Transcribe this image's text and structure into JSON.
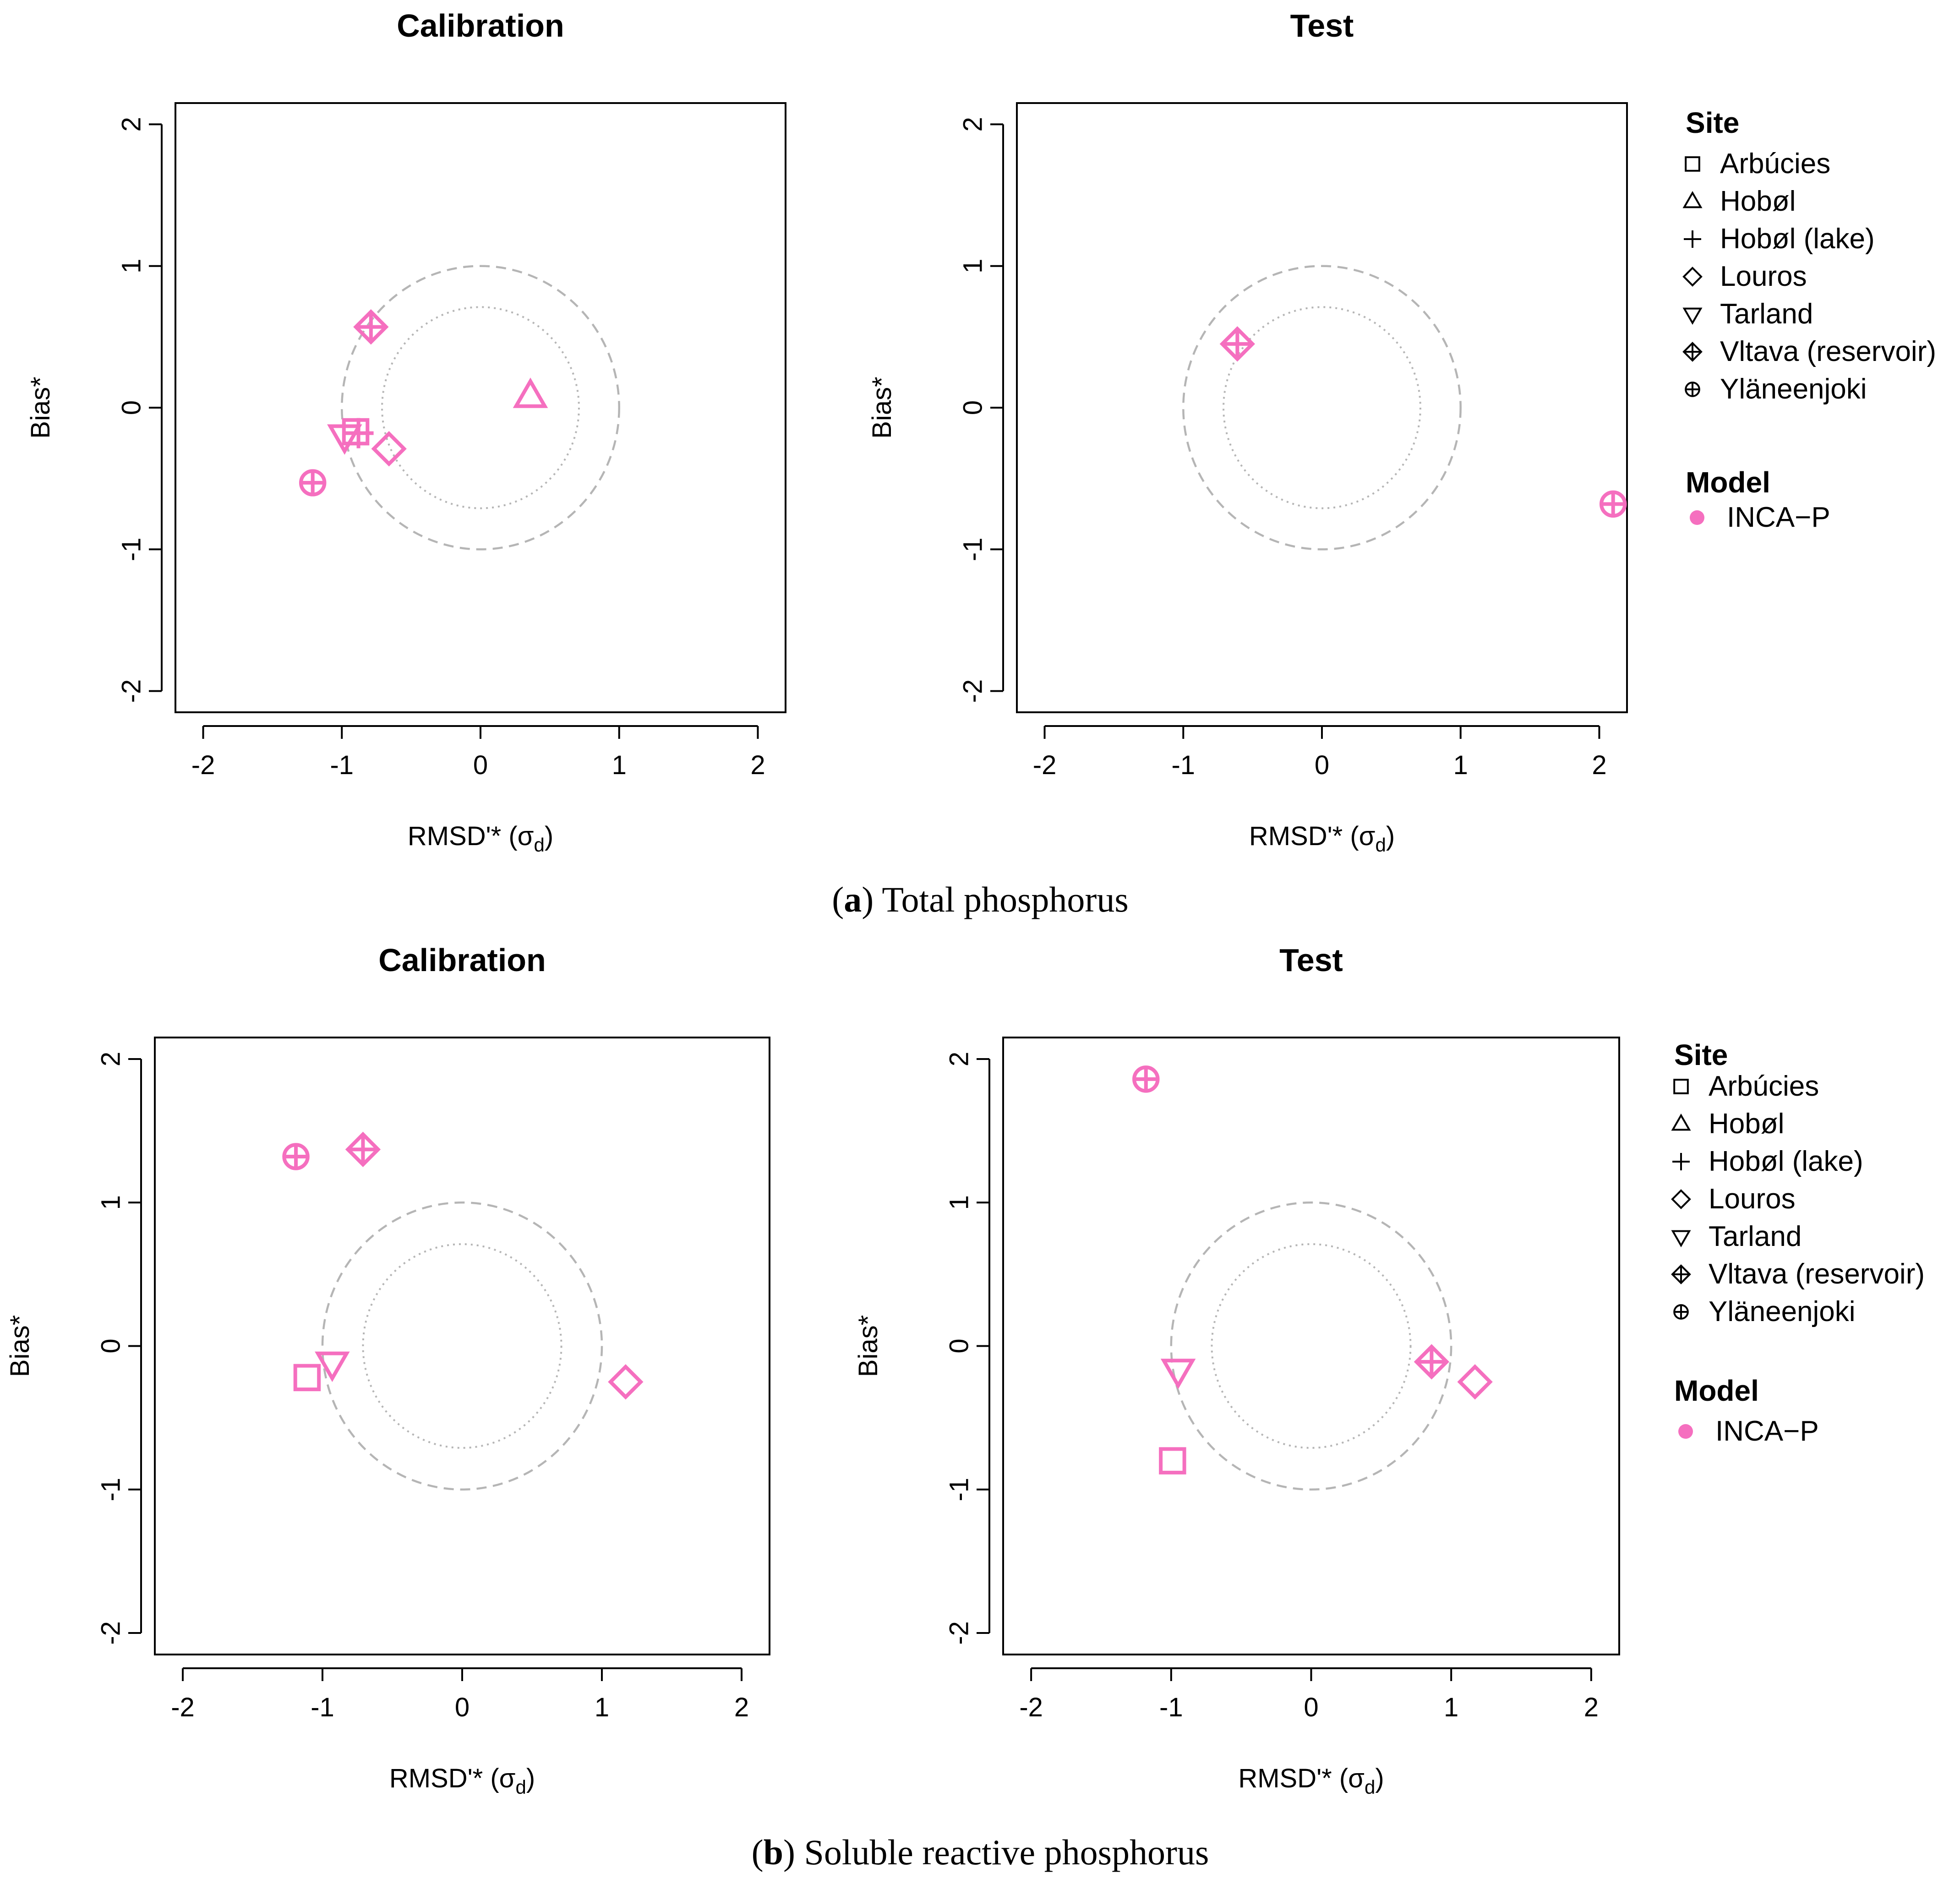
{
  "captions": [
    {
      "letter": "a",
      "text": ") Total phosphorus"
    },
    {
      "letter": "b",
      "text": ") Soluble reactive phosphorus"
    }
  ],
  "legend": {
    "site_title": "Site",
    "model_title": "Model",
    "sites": [
      {
        "label": "Arbúcies",
        "symbol": "square"
      },
      {
        "label": "Hobøl",
        "symbol": "triangle-up"
      },
      {
        "label": "Hobøl (lake)",
        "symbol": "plus"
      },
      {
        "label": "Louros",
        "symbol": "diamond"
      },
      {
        "label": "Tarland",
        "symbol": "triangle-down"
      },
      {
        "label": "Vltava (reservoir)",
        "symbol": "diamond-plus"
      },
      {
        "label": "Yläneenjoki",
        "symbol": "circle-plus"
      }
    ],
    "models": [
      {
        "label": "INCA−P",
        "color": "#f56fbf"
      }
    ]
  },
  "style": {
    "marker_color": "#f56fbf",
    "circle_color": "#b5b5b5",
    "axis_color": "#000000"
  },
  "chart_data": [
    {
      "type": "scatter",
      "panel": "a",
      "title": "Calibration",
      "xlabel": "RMSD'* (σ",
      "xlabel_sub": "d",
      "xlabel_end": ")",
      "ylabel": "Bias*",
      "xlim": [
        -2.2,
        2.2
      ],
      "ylim": [
        -2.15,
        2.15
      ],
      "xticks": [
        -2,
        -1,
        0,
        1,
        2
      ],
      "yticks": [
        -2,
        -1,
        0,
        1,
        2
      ],
      "reference_circles": [
        {
          "radius": 1,
          "style": "dashed"
        },
        {
          "radius": 0.71,
          "style": "dotted"
        }
      ],
      "points": [
        {
          "site": "Arbúcies",
          "symbol": "square",
          "x": -0.9,
          "y": -0.17
        },
        {
          "site": "Hobøl",
          "symbol": "triangle-up",
          "x": 0.36,
          "y": 0.08
        },
        {
          "site": "Hobøl (lake)",
          "symbol": "plus",
          "x": -0.88,
          "y": -0.18
        },
        {
          "site": "Louros",
          "symbol": "diamond",
          "x": -0.66,
          "y": -0.29
        },
        {
          "site": "Tarland",
          "symbol": "triangle-down",
          "x": -0.98,
          "y": -0.2
        },
        {
          "site": "Vltava (reservoir)",
          "symbol": "diamond-plus",
          "x": -0.79,
          "y": 0.57
        },
        {
          "site": "Yläneenjoki",
          "symbol": "circle-plus",
          "x": -1.21,
          "y": -0.53
        }
      ]
    },
    {
      "type": "scatter",
      "panel": "a",
      "title": "Test",
      "xlabel": "RMSD'* (σ",
      "xlabel_sub": "d",
      "xlabel_end": ")",
      "ylabel": "Bias*",
      "xlim": [
        -2.2,
        2.2
      ],
      "ylim": [
        -2.15,
        2.15
      ],
      "xticks": [
        -2,
        -1,
        0,
        1,
        2
      ],
      "yticks": [
        -2,
        -1,
        0,
        1,
        2
      ],
      "reference_circles": [
        {
          "radius": 1,
          "style": "dashed"
        },
        {
          "radius": 0.71,
          "style": "dotted"
        }
      ],
      "points": [
        {
          "site": "Vltava (reservoir)",
          "symbol": "diamond-plus",
          "x": -0.61,
          "y": 0.45
        },
        {
          "site": "Yläneenjoki",
          "symbol": "circle-plus",
          "x": 2.1,
          "y": -0.68
        }
      ]
    },
    {
      "type": "scatter",
      "panel": "b",
      "title": "Calibration",
      "xlabel": "RMSD'* (σ",
      "xlabel_sub": "d",
      "xlabel_end": ")",
      "ylabel": "Bias*",
      "xlim": [
        -2.2,
        2.2
      ],
      "ylim": [
        -2.15,
        2.15
      ],
      "xticks": [
        -2,
        -1,
        0,
        1,
        2
      ],
      "yticks": [
        -2,
        -1,
        0,
        1,
        2
      ],
      "reference_circles": [
        {
          "radius": 1,
          "style": "dashed"
        },
        {
          "radius": 0.71,
          "style": "dotted"
        }
      ],
      "points": [
        {
          "site": "Arbúcies",
          "symbol": "square",
          "x": -1.11,
          "y": -0.22
        },
        {
          "site": "Louros",
          "symbol": "diamond",
          "x": 1.17,
          "y": -0.25
        },
        {
          "site": "Tarland",
          "symbol": "triangle-down",
          "x": -0.93,
          "y": -0.12
        },
        {
          "site": "Vltava (reservoir)",
          "symbol": "diamond-plus",
          "x": -0.71,
          "y": 1.37
        },
        {
          "site": "Yläneenjoki",
          "symbol": "circle-plus",
          "x": -1.19,
          "y": 1.32
        }
      ]
    },
    {
      "type": "scatter",
      "panel": "b",
      "title": "Test",
      "xlabel": "RMSD'* (σ",
      "xlabel_sub": "d",
      "xlabel_end": ")",
      "ylabel": "Bias*",
      "xlim": [
        -2.2,
        2.2
      ],
      "ylim": [
        -2.15,
        2.15
      ],
      "xticks": [
        -2,
        -1,
        0,
        1,
        2
      ],
      "yticks": [
        -2,
        -1,
        0,
        1,
        2
      ],
      "reference_circles": [
        {
          "radius": 1,
          "style": "dashed"
        },
        {
          "radius": 0.71,
          "style": "dotted"
        }
      ],
      "points": [
        {
          "site": "Arbúcies",
          "symbol": "square",
          "x": -0.99,
          "y": -0.8
        },
        {
          "site": "Louros",
          "symbol": "diamond",
          "x": 1.17,
          "y": -0.25
        },
        {
          "site": "Tarland",
          "symbol": "triangle-down",
          "x": -0.95,
          "y": -0.17
        },
        {
          "site": "Vltava (reservoir)",
          "symbol": "diamond-plus",
          "x": 0.86,
          "y": -0.11
        },
        {
          "site": "Yläneenjoki",
          "symbol": "circle-plus",
          "x": -1.18,
          "y": 1.86
        }
      ]
    }
  ]
}
